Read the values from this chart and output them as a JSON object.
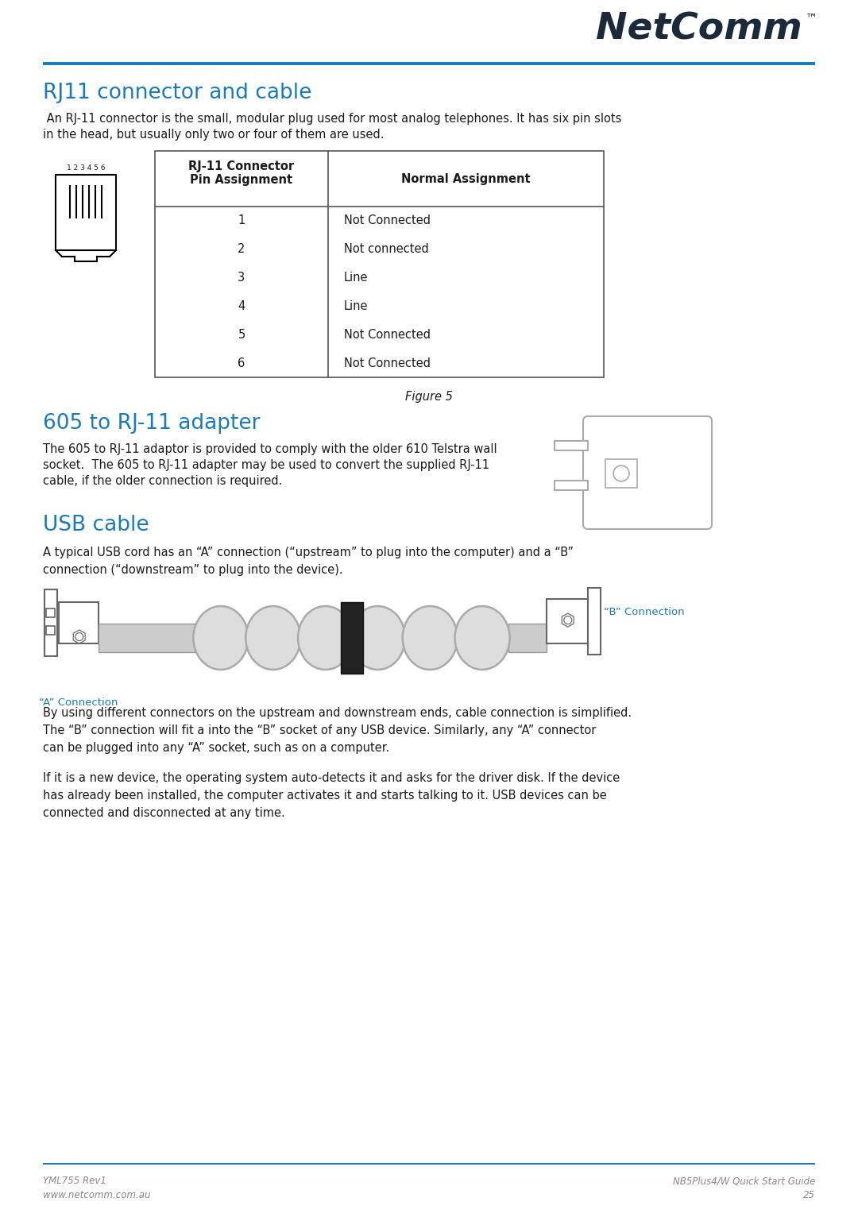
{
  "bg_color": "#ffffff",
  "blue_color": "#1a7abf",
  "dark_navy": "#1a2a3a",
  "gray_text": "#888888",
  "black": "#1a1a1a",
  "table_border": "#555555",
  "title1": "RJ11 connector and cable",
  "para1_line1": " An RJ-11 connector is the small, modular plug used for most analog telephones. It has six pin slots",
  "para1_line2": "in the head, but usually only two or four of them are used.",
  "table_col1_header": "RJ-11 Connector\nPin Assignment",
  "table_col2_header": "Normal Assignment",
  "table_pins": [
    "1",
    "2",
    "3",
    "4",
    "5",
    "6"
  ],
  "table_assignments": [
    "Not Connected",
    "Not connected",
    "Line",
    "Line",
    "Not Connected",
    "Not Connected"
  ],
  "figure_caption": "Figure 5",
  "title2": "605 to RJ-11 adapter",
  "para2_line1": "The 605 to RJ-11 adaptor is provided to comply with the older 610 Telstra wall",
  "para2_line2": "socket.  The 605 to RJ-11 adapter may be used to convert the supplied RJ-11",
  "para2_line3": "cable, if the older connection is required.",
  "title3": "USB cable",
  "para3_line1": "A typical USB cord has an “A” connection (“upstream” to plug into the computer) and a “B”",
  "para3_line2": "connection (“downstream” to plug into the device).",
  "label_a": "“A” Connection",
  "label_b": "“B” Connection",
  "para4_line1": "By using different connectors on the upstream and downstream ends, cable connection is simplified.",
  "para4_line2": "The “B” connection will fit a into the “B” socket of any USB device. Similarly, any “A” connector",
  "para4_line3": "can be plugged into any “A” socket, such as on a computer.",
  "para5_line1": "If it is a new device, the operating system auto-detects it and asks for the driver disk. If the device",
  "para5_line2": "has already been installed, the computer activates it and starts talking to it. USB devices can be",
  "para5_line3": "connected and disconnected at any time.",
  "footer_left1": "YML755 Rev1",
  "footer_left2": "www.netcomm.com.au",
  "footer_right1": "NB5Plus4/W Quick Start Guide",
  "footer_right2": "25"
}
